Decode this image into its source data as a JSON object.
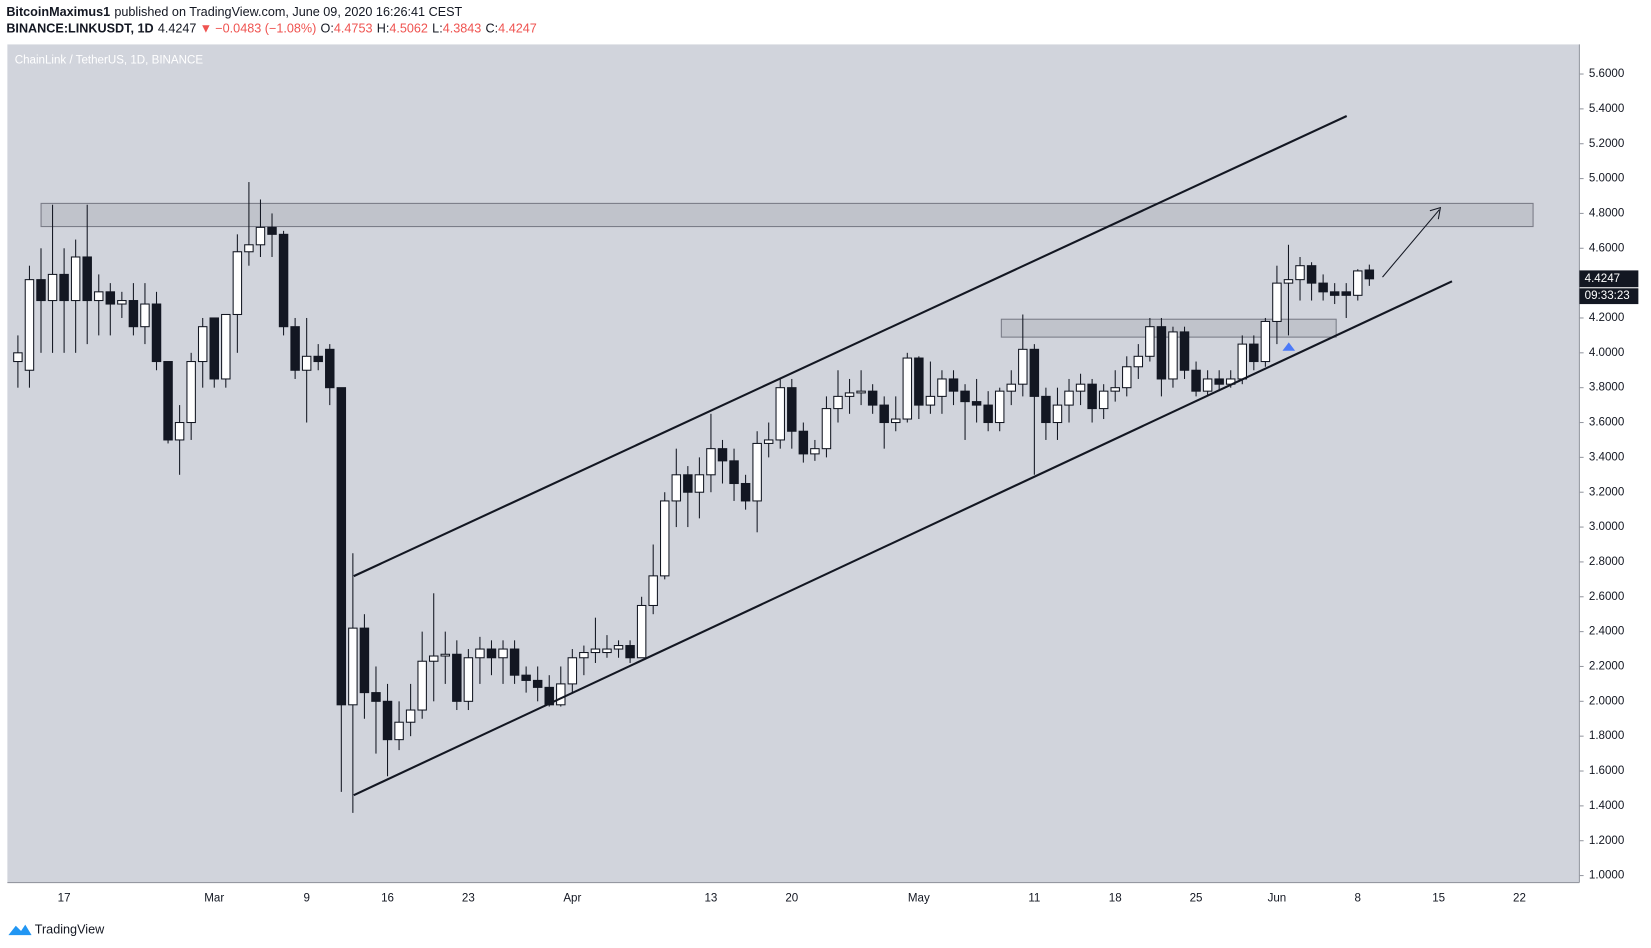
{
  "header": {
    "author": "BitcoinMaximus1",
    "published": "published on TradingView.com, June 09, 2020 16:26:41 CEST",
    "symbol": "BINANCE:LINKUSDT, 1D",
    "change": "−0.0483 (−1.08%)",
    "down_arrow": "▼",
    "ohlc_labels": [
      "O:",
      "H:",
      "L:",
      "C:"
    ],
    "countdown": "09:33:23"
  },
  "footer": {
    "brand": "TradingView"
  },
  "chart_data": {
    "type": "candlestick",
    "title": "ChainLink / TetherUS, 1D, BINANCE",
    "categories": [
      null,
      null,
      null,
      null,
      "17",
      null,
      null,
      null,
      null,
      null,
      null,
      null,
      null,
      null,
      null,
      null,
      null,
      "Mar",
      null,
      null,
      null,
      null,
      null,
      null,
      null,
      "9",
      null,
      null,
      null,
      null,
      null,
      null,
      "16",
      null,
      null,
      null,
      null,
      null,
      null,
      "23",
      null,
      null,
      null,
      null,
      null,
      null,
      null,
      null,
      "Apr",
      null,
      null,
      null,
      null,
      null,
      null,
      null,
      null,
      null,
      null,
      null,
      "13",
      null,
      null,
      null,
      null,
      null,
      null,
      "20",
      null,
      null,
      null,
      null,
      null,
      null,
      null,
      null,
      null,
      null,
      "May",
      null,
      null,
      null,
      null,
      null,
      null,
      null,
      null,
      null,
      "11",
      null,
      null,
      null,
      null,
      null,
      null,
      "18",
      null,
      null,
      null,
      null,
      null,
      null,
      "25",
      null,
      null,
      null,
      null,
      null,
      null,
      "Jun",
      null,
      null,
      null,
      null,
      null,
      null,
      "8",
      null,
      null,
      null,
      null,
      null,
      null,
      "15",
      null,
      null,
      null,
      null,
      null,
      null,
      "22"
    ],
    "open": [
      3.95,
      3.9,
      4.42,
      4.3,
      4.45,
      4.3,
      4.55,
      4.3,
      4.35,
      4.28,
      4.3,
      4.15,
      4.28,
      3.95,
      3.5,
      3.6,
      3.95,
      4.2,
      3.85,
      4.22,
      4.58,
      4.62,
      4.72,
      4.68,
      4.15,
      3.9,
      3.98,
      4.02,
      3.8,
      1.98,
      2.42,
      2.05,
      2.0,
      1.78,
      1.88,
      1.95,
      2.23,
      2.26,
      2.27,
      2.0,
      2.25,
      2.3,
      2.25,
      2.3,
      2.15,
      2.12,
      2.08,
      1.98,
      2.1,
      2.25,
      2.28,
      2.28,
      2.3,
      2.32,
      2.25,
      2.55,
      2.72,
      3.15,
      3.3,
      3.2,
      3.3,
      3.45,
      3.38,
      3.25,
      3.15,
      3.48,
      3.5,
      3.8,
      3.55,
      3.42,
      3.45,
      3.68,
      3.75,
      3.77,
      3.78,
      3.7,
      3.6,
      3.62,
      3.97,
      3.7,
      3.75,
      3.85,
      3.78,
      3.72,
      3.7,
      3.6,
      3.78,
      3.82,
      4.02,
      3.75,
      3.6,
      3.7,
      3.78,
      3.82,
      3.68,
      3.78,
      3.8,
      3.92,
      3.98,
      4.15,
      3.85,
      4.12,
      3.9,
      3.78,
      3.85,
      3.82,
      3.85,
      4.05,
      3.95,
      4.18,
      4.4,
      4.42,
      4.5,
      4.4,
      4.35,
      4.35,
      4.33,
      4.4753,
      null,
      null,
      null,
      null,
      null,
      null,
      null,
      null,
      null,
      null,
      null,
      null,
      null
    ],
    "high": [
      4.1,
      4.5,
      4.6,
      4.85,
      4.6,
      4.65,
      4.85,
      4.45,
      4.4,
      4.35,
      4.4,
      4.4,
      4.35,
      3.95,
      3.7,
      4.0,
      4.2,
      4.2,
      4.22,
      4.68,
      4.98,
      4.88,
      4.8,
      4.7,
      4.2,
      4.2,
      4.05,
      4.05,
      3.8,
      2.85,
      2.5,
      2.2,
      2.1,
      2.0,
      2.1,
      2.4,
      2.62,
      2.4,
      2.35,
      2.3,
      2.37,
      2.35,
      2.35,
      2.35,
      2.2,
      2.2,
      2.15,
      2.2,
      2.3,
      2.32,
      2.48,
      2.38,
      2.35,
      2.35,
      2.6,
      2.9,
      3.2,
      3.45,
      3.35,
      3.4,
      3.65,
      3.5,
      3.45,
      3.3,
      3.55,
      3.6,
      3.85,
      3.85,
      3.6,
      3.5,
      3.75,
      3.9,
      3.85,
      3.9,
      3.82,
      3.75,
      3.75,
      4.0,
      3.98,
      3.95,
      3.9,
      3.9,
      3.82,
      3.85,
      3.78,
      3.8,
      3.9,
      4.22,
      4.05,
      3.8,
      3.8,
      3.85,
      3.88,
      3.85,
      3.82,
      3.9,
      3.98,
      4.05,
      4.2,
      4.2,
      4.15,
      4.15,
      3.95,
      3.9,
      3.9,
      3.9,
      4.1,
      4.1,
      4.2,
      4.5,
      4.62,
      4.55,
      4.52,
      4.45,
      4.4,
      4.4,
      4.48,
      4.5062,
      null,
      null,
      null,
      null,
      null,
      null,
      null,
      null,
      null,
      null,
      null,
      null,
      null
    ],
    "low": [
      3.8,
      3.8,
      4.0,
      4.0,
      4.0,
      4.0,
      4.05,
      4.1,
      4.1,
      4.2,
      4.1,
      4.05,
      3.9,
      3.48,
      3.3,
      3.5,
      3.8,
      3.8,
      3.8,
      4.0,
      4.5,
      4.55,
      4.55,
      4.1,
      3.85,
      3.6,
      3.9,
      3.7,
      1.48,
      1.36,
      1.9,
      1.7,
      1.57,
      1.72,
      1.8,
      1.9,
      2.0,
      2.1,
      1.95,
      1.95,
      2.1,
      2.15,
      2.1,
      2.1,
      2.05,
      2.0,
      1.97,
      1.97,
      2.05,
      2.15,
      2.22,
      2.25,
      2.25,
      2.22,
      2.25,
      2.5,
      2.7,
      3.0,
      3.0,
      3.05,
      3.2,
      3.25,
      3.15,
      3.1,
      2.97,
      3.4,
      3.45,
      3.45,
      3.37,
      3.38,
      3.4,
      3.6,
      3.65,
      3.7,
      3.65,
      3.45,
      3.55,
      3.6,
      3.62,
      3.65,
      3.65,
      3.7,
      3.5,
      3.6,
      3.55,
      3.55,
      3.7,
      3.75,
      3.3,
      3.5,
      3.5,
      3.6,
      3.7,
      3.6,
      3.62,
      3.72,
      3.75,
      3.85,
      3.95,
      3.75,
      3.8,
      3.85,
      3.75,
      3.75,
      3.78,
      3.8,
      3.82,
      3.9,
      3.92,
      4.05,
      4.1,
      4.3,
      4.3,
      4.3,
      4.28,
      4.2,
      4.3,
      4.3843,
      null,
      null,
      null,
      null,
      null,
      null,
      null,
      null,
      null,
      null,
      null,
      null,
      null
    ],
    "close": [
      4.0,
      4.42,
      4.3,
      4.45,
      4.3,
      4.55,
      4.3,
      4.35,
      4.28,
      4.3,
      4.15,
      4.28,
      3.95,
      3.5,
      3.6,
      3.95,
      4.15,
      3.85,
      4.22,
      4.58,
      4.62,
      4.72,
      4.68,
      4.15,
      3.9,
      3.98,
      3.95,
      3.8,
      1.98,
      2.42,
      2.05,
      2.0,
      1.78,
      1.88,
      1.95,
      2.23,
      2.26,
      2.27,
      2.0,
      2.25,
      2.3,
      2.25,
      2.3,
      2.15,
      2.12,
      2.08,
      1.98,
      2.1,
      2.25,
      2.28,
      2.3,
      2.3,
      2.32,
      2.25,
      2.55,
      2.72,
      3.15,
      3.3,
      3.2,
      3.3,
      3.45,
      3.38,
      3.25,
      3.15,
      3.48,
      3.5,
      3.8,
      3.55,
      3.42,
      3.45,
      3.68,
      3.75,
      3.77,
      3.78,
      3.7,
      3.6,
      3.62,
      3.97,
      3.7,
      3.75,
      3.85,
      3.78,
      3.72,
      3.7,
      3.6,
      3.78,
      3.82,
      4.02,
      3.75,
      3.6,
      3.7,
      3.78,
      3.82,
      3.68,
      3.78,
      3.8,
      3.92,
      3.98,
      4.15,
      3.85,
      4.12,
      3.9,
      3.78,
      3.85,
      3.82,
      3.85,
      4.05,
      3.95,
      4.18,
      4.4,
      4.42,
      4.5,
      4.4,
      4.35,
      4.33,
      4.33,
      4.47,
      4.4247,
      null,
      null,
      null,
      null,
      null,
      null,
      null,
      null,
      null,
      null,
      null,
      null,
      null
    ],
    "up_color": "#ffffff",
    "down_color": "#131722",
    "ylim": [
      0.96,
      5.77
    ],
    "yticks": [
      {
        "value": 1,
        "label": "1.0000"
      },
      {
        "value": 1.2,
        "label": "1.2000"
      },
      {
        "value": 1.4,
        "label": "1.4000"
      },
      {
        "value": 1.6,
        "label": "1.6000"
      },
      {
        "value": 1.8,
        "label": "1.8000"
      },
      {
        "value": 2,
        "label": "2.0000"
      },
      {
        "value": 2.2,
        "label": "2.2000"
      },
      {
        "value": 2.4,
        "label": "2.4000"
      },
      {
        "value": 2.6,
        "label": "2.6000"
      },
      {
        "value": 2.8,
        "label": "2.8000"
      },
      {
        "value": 3,
        "label": "3.0000"
      },
      {
        "value": 3.2,
        "label": "3.2000"
      },
      {
        "value": 3.4,
        "label": "3.4000"
      },
      {
        "value": 3.6,
        "label": "3.6000"
      },
      {
        "value": 3.8,
        "label": "3.8000"
      },
      {
        "value": 4,
        "label": "4.0000"
      },
      {
        "value": 4.2,
        "label": "4.2000"
      },
      {
        "value": 4.4,
        "label": "4.4000"
      },
      {
        "value": 4.6,
        "label": "4.6000"
      },
      {
        "value": 4.8,
        "label": "4.8000"
      },
      {
        "value": 5,
        "label": "5.0000"
      },
      {
        "value": 5.2,
        "label": "5.2000"
      },
      {
        "value": 5.4,
        "label": "5.4000"
      },
      {
        "value": 5.6,
        "label": "5.6000"
      }
    ],
    "grid": false
  }
}
